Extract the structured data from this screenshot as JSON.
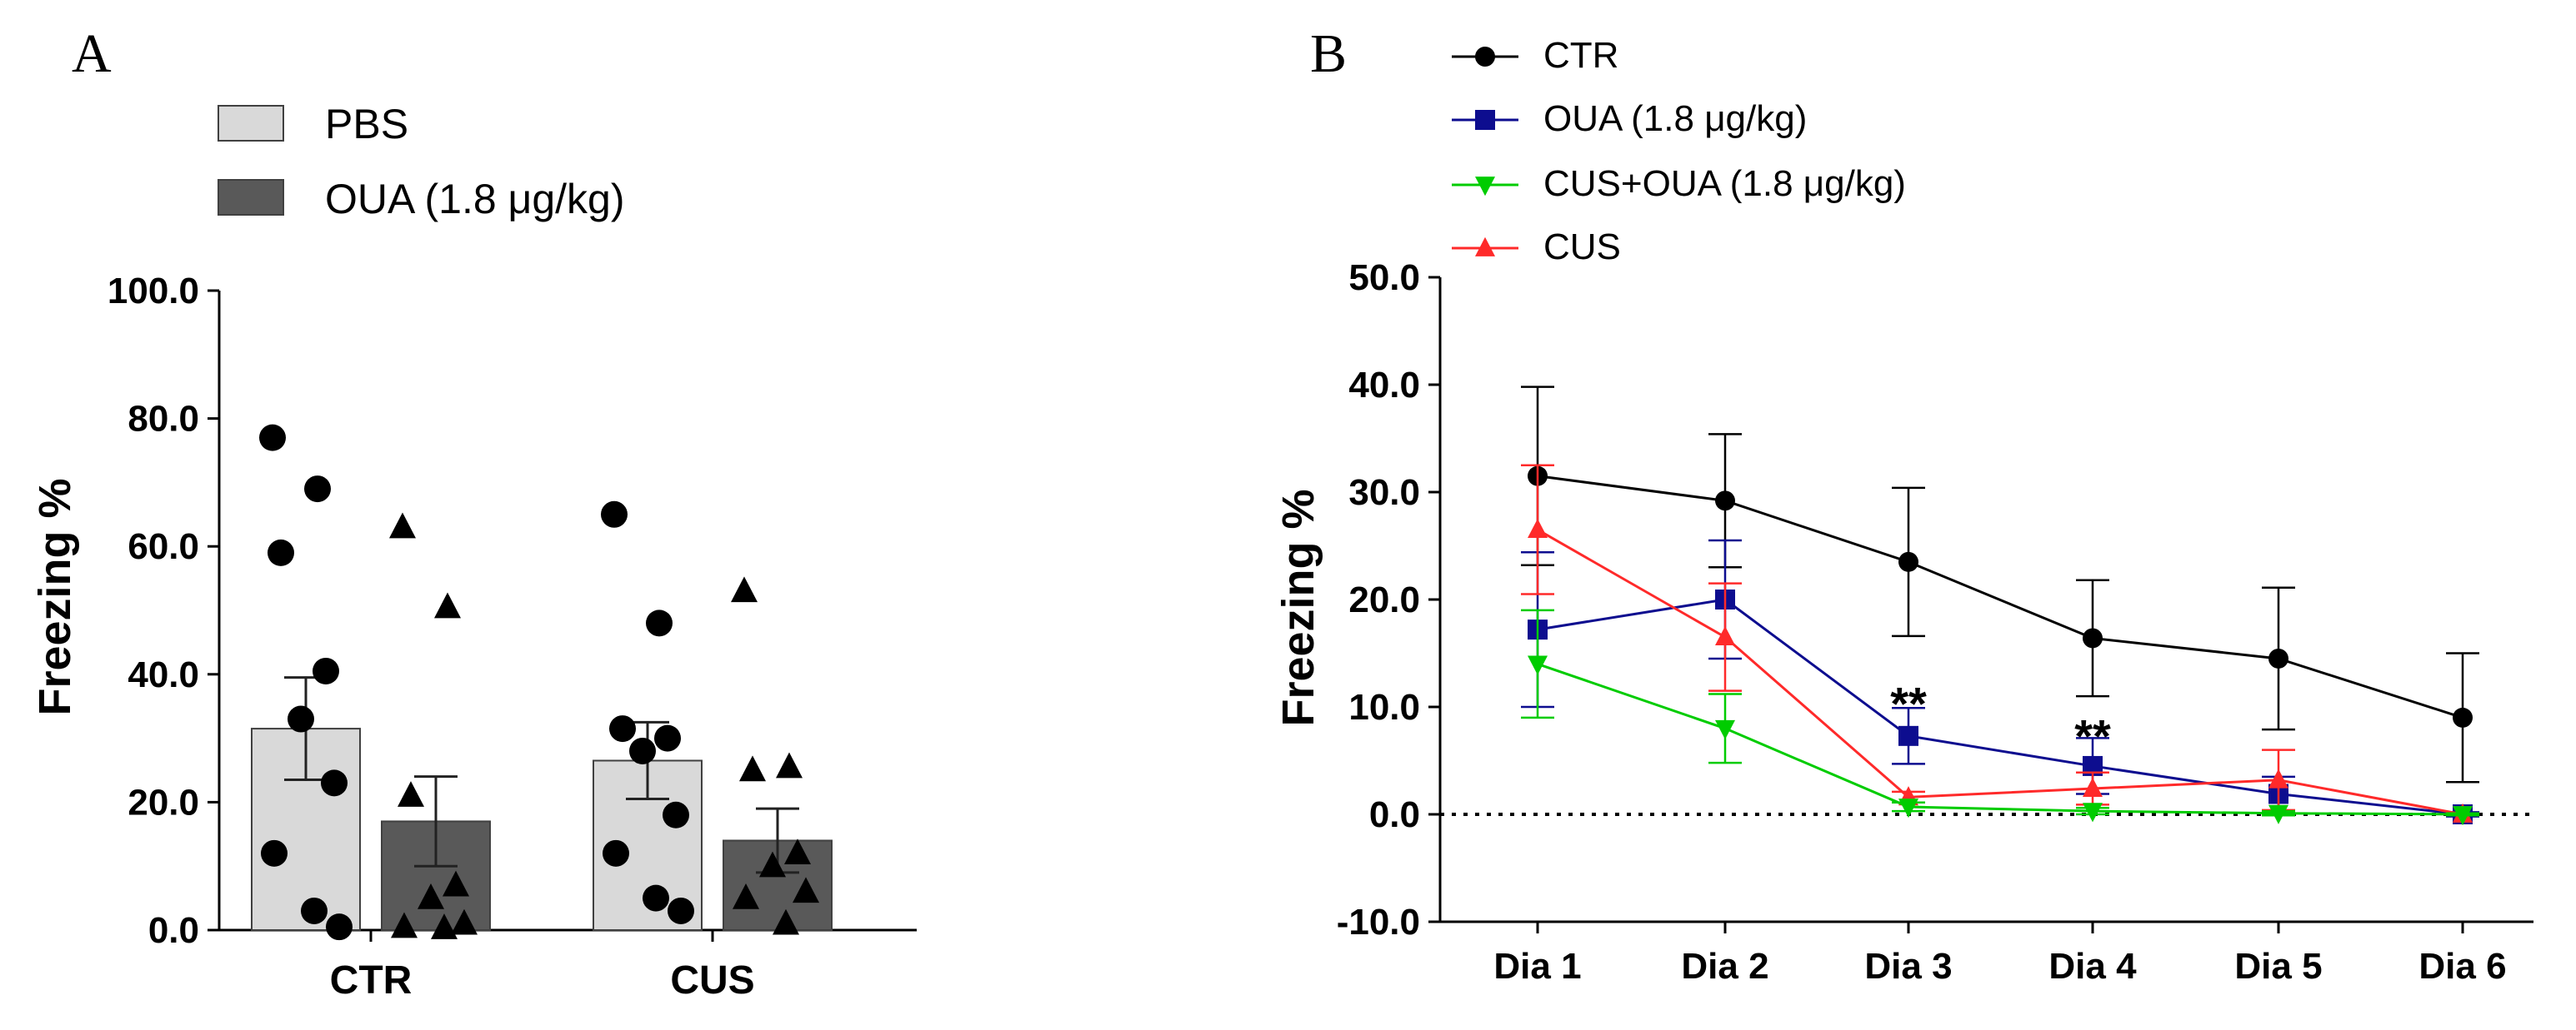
{
  "chart_data": [
    {
      "panel": "A",
      "type": "bar",
      "ylabel": "Freezing %",
      "xlabel": "",
      "ylim": [
        0,
        100
      ],
      "yticks": [
        "0.0",
        "20.0",
        "40.0",
        "60.0",
        "80.0",
        "100.0"
      ],
      "categories": [
        "CTR",
        "CUS"
      ],
      "legend": [
        "PBS",
        "OUA (1.8 μg/kg)"
      ],
      "colors": {
        "PBS": "#d9d9d9",
        "OUA": "#595959",
        "edge": "#404040",
        "point": "#000000"
      },
      "series": [
        {
          "name": "PBS",
          "marker": "circle",
          "values": [
            31.5,
            26.5
          ],
          "sem": [
            8.0,
            6.0
          ],
          "points": [
            [
              77,
              69,
              59,
              40.5,
              33,
              23,
              12,
              3,
              0.5
            ],
            [
              65,
              48,
              31.5,
              30,
              28,
              18,
              12,
              5,
              3
            ]
          ]
        },
        {
          "name": "OUA (1.8 μg/kg)",
          "marker": "triangle",
          "values": [
            17,
            14
          ],
          "sem": [
            7.0,
            5.0
          ],
          "points": [
            [
              63,
              50.5,
              21,
              7,
              5,
              1,
              0.5,
              0.3
            ],
            [
              53,
              25.5,
              25,
              12,
              10,
              6,
              5,
              1
            ]
          ]
        }
      ]
    },
    {
      "panel": "B",
      "type": "line",
      "ylabel": "Freezing %",
      "xlabel": "",
      "ylim": [
        -10,
        50
      ],
      "yticks": [
        "-10.0",
        "0.0",
        "10.0",
        "20.0",
        "30.0",
        "40.0",
        "50.0"
      ],
      "categories": [
        "Dia 1",
        "Dia 2",
        "Dia 3",
        "Dia 4",
        "Dia 5",
        "Dia 6"
      ],
      "reference_line": 0,
      "annotations": [
        {
          "text": "**",
          "category": "Dia 3",
          "y": 10.5
        },
        {
          "text": "**",
          "category": "Dia 4",
          "y": 7.5
        }
      ],
      "series": [
        {
          "name": "CTR",
          "color": "#000000",
          "marker": "circle",
          "values": [
            31.5,
            29.2,
            23.5,
            16.4,
            14.5,
            9.0
          ],
          "errors": [
            8.3,
            6.2,
            6.9,
            5.4,
            6.6,
            6.0
          ]
        },
        {
          "name": "OUA (1.8 μg/kg)",
          "color": "#0d0d8f",
          "marker": "square",
          "values": [
            17.2,
            20.0,
            7.3,
            4.5,
            1.9,
            0.0
          ],
          "errors": [
            7.2,
            5.5,
            2.6,
            2.6,
            1.6,
            0.2
          ]
        },
        {
          "name": "CUS+OUA (1.8 μg/kg)",
          "color": "#00cc00",
          "marker": "triangle-down",
          "values": [
            14.0,
            8.0,
            0.7,
            0.3,
            0.1,
            0.0
          ],
          "errors": [
            5.0,
            3.2,
            0.4,
            0.3,
            0.2,
            0.1
          ]
        },
        {
          "name": "CUS",
          "color": "#ff2a2a",
          "marker": "triangle-up",
          "values": [
            26.5,
            16.5,
            1.6,
            2.4,
            3.2,
            0.0
          ],
          "errors": [
            6.0,
            5.0,
            0.5,
            1.5,
            2.8,
            0.1
          ]
        }
      ]
    }
  ],
  "labels": {
    "panel_a": "A",
    "panel_b": "B"
  }
}
